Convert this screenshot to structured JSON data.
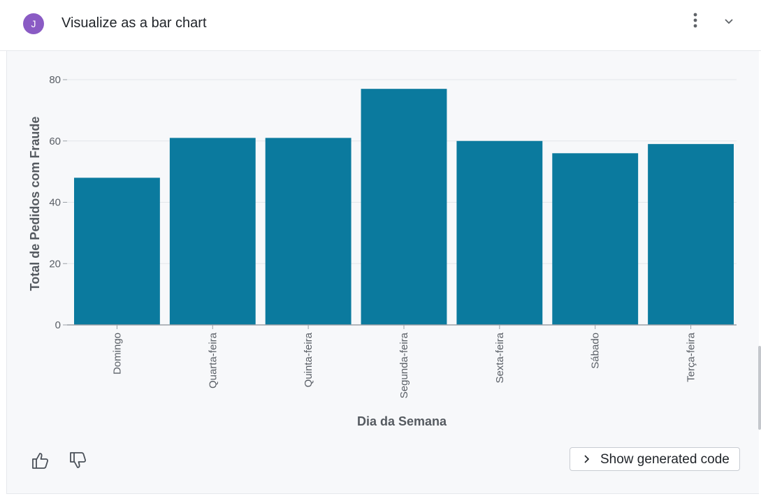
{
  "header": {
    "avatar_initial": "J",
    "title": "Visualize as a bar chart",
    "avatar_color": "#8a5bc4"
  },
  "footer": {
    "show_code_label": "Show generated code"
  },
  "chart_data": {
    "type": "bar",
    "categories": [
      "Domingo",
      "Quarta-feira",
      "Quinta-feira",
      "Segunda-feira",
      "Sexta-feira",
      "Sábado",
      "Terça-feira"
    ],
    "values": [
      48,
      61,
      61,
      77,
      60,
      56,
      59
    ],
    "xlabel": "Dia da Semana",
    "ylabel": "Total de Pedidos com Fraude",
    "ylim": [
      0,
      80
    ],
    "yticks": [
      0,
      20,
      40,
      60,
      80
    ],
    "grid": true,
    "bar_color": "#0b7a9e"
  }
}
